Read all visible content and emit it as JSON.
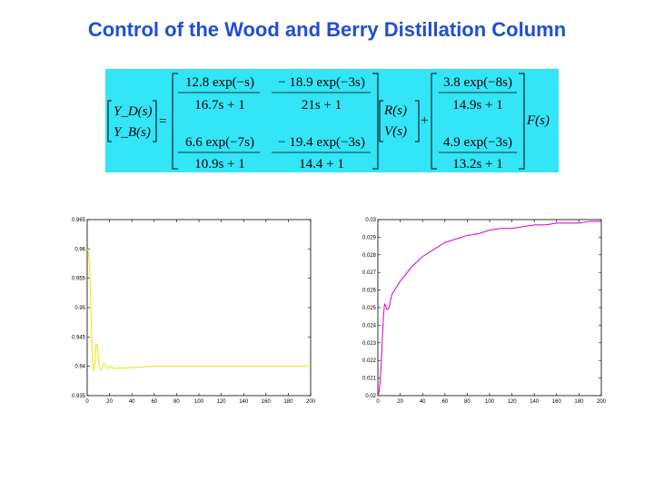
{
  "slide": {
    "title": "Control of the Wood and Berry Distillation Column"
  },
  "equation": {
    "lhs_top": "Y_D(s)",
    "lhs_bottom": "Y_B(s)",
    "equals": "=",
    "plus": "+",
    "g11_num": "12.8 exp(−s)",
    "g11_den": "16.7s + 1",
    "g12_num": "− 18.9 exp(−3s)",
    "g12_den": "21s + 1",
    "g21_num": "6.6 exp(−7s)",
    "g21_den": "10.9s + 1",
    "g22_num": "− 19.4 exp(−3s)",
    "g22_den": "14.4 + 1",
    "input_top": "R(s)",
    "input_bottom": "V(s)",
    "d1_num": "3.8 exp(−8s)",
    "d1_den": "14.9s + 1",
    "d2_num": "4.9 exp(−3s)",
    "d2_den": "13.2s + 1",
    "disturbance": "F(s)"
  },
  "chart_data": [
    {
      "type": "line",
      "title": "",
      "xlabel": "",
      "ylabel": "",
      "xlim": [
        0,
        200
      ],
      "ylim": [
        0.935,
        0.965
      ],
      "xticks": [
        0,
        20,
        40,
        60,
        80,
        100,
        120,
        140,
        160,
        180,
        200
      ],
      "yticks": [
        0.935,
        0.94,
        0.945,
        0.95,
        0.955,
        0.96,
        0.965
      ],
      "grid": false,
      "color": "#e8e800",
      "series": [
        {
          "x": [
            0,
            1,
            2,
            3,
            4,
            5,
            6,
            7,
            8,
            9,
            10,
            11,
            12,
            13,
            14,
            15,
            16,
            17,
            18,
            19,
            20,
            21,
            22,
            23,
            24,
            25,
            26,
            28,
            30,
            32,
            35,
            40,
            45,
            50,
            60,
            70,
            80,
            100,
            120,
            140,
            160,
            180,
            200
          ],
          "values": [
            0.96,
            0.9595,
            0.9575,
            0.952,
            0.945,
            0.9405,
            0.9392,
            0.9408,
            0.9438,
            0.9435,
            0.9415,
            0.9399,
            0.9394,
            0.9396,
            0.9402,
            0.9405,
            0.9403,
            0.9399,
            0.9396,
            0.9397,
            0.9399,
            0.94,
            0.9399,
            0.9397,
            0.9396,
            0.9396,
            0.9397,
            0.9397,
            0.9397,
            0.9397,
            0.9397,
            0.9398,
            0.9398,
            0.9399,
            0.94,
            0.94,
            0.94,
            0.94,
            0.94,
            0.94,
            0.94,
            0.94,
            0.94
          ]
        }
      ]
    },
    {
      "type": "line",
      "title": "",
      "xlabel": "",
      "ylabel": "",
      "xlim": [
        0,
        200
      ],
      "ylim": [
        0.02,
        0.03
      ],
      "xticks": [
        0,
        20,
        40,
        60,
        80,
        100,
        120,
        140,
        160,
        180,
        200
      ],
      "yticks": [
        0.02,
        0.021,
        0.022,
        0.023,
        0.024,
        0.025,
        0.026,
        0.027,
        0.028,
        0.029,
        0.03
      ],
      "grid": false,
      "color": "#cc00cc",
      "series": [
        {
          "x": [
            0,
            1,
            2,
            3,
            4,
            5,
            6,
            7,
            8,
            9,
            10,
            11,
            12,
            13,
            14,
            15,
            16,
            18,
            20,
            25,
            30,
            40,
            50,
            60,
            70,
            80,
            90,
            100,
            110,
            120,
            130,
            140,
            150,
            160,
            170,
            180,
            190,
            200
          ],
          "values": [
            0.02,
            0.0202,
            0.0208,
            0.0218,
            0.0232,
            0.0245,
            0.0252,
            0.0251,
            0.0249,
            0.0249,
            0.025,
            0.0253,
            0.0256,
            0.0258,
            0.0259,
            0.026,
            0.0261,
            0.0263,
            0.0265,
            0.0269,
            0.0273,
            0.0279,
            0.0283,
            0.0287,
            0.0289,
            0.0291,
            0.0292,
            0.0294,
            0.0295,
            0.0295,
            0.0296,
            0.0297,
            0.0297,
            0.0298,
            0.0298,
            0.0298,
            0.0299,
            0.0299
          ]
        }
      ]
    }
  ]
}
